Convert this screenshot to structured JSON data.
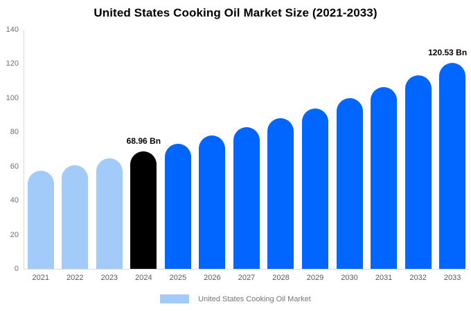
{
  "header": {
    "title": "United States Cooking Oil Market Size (2021-2033)"
  },
  "legend": {
    "label": "United States Cooking Oil Market",
    "swatch_color": "#A2CBFA"
  },
  "chart_data": {
    "type": "bar",
    "title": "United States Cooking Oil Market Size (2021-2033)",
    "unit": "Bn",
    "categories": [
      "2021",
      "2022",
      "2023",
      "2024",
      "2025",
      "2026",
      "2027",
      "2028",
      "2029",
      "2030",
      "2031",
      "2032",
      "2033"
    ],
    "values": [
      57.3,
      60.9,
      64.8,
      68.96,
      73.4,
      78.1,
      83.1,
      88.4,
      94.0,
      100.1,
      106.5,
      113.3,
      120.53
    ],
    "bar_colors": [
      "#A2CBFA",
      "#A2CBFA",
      "#A2CBFA",
      "#000000",
      "#0066FF",
      "#0066FF",
      "#0066FF",
      "#0066FF",
      "#0066FF",
      "#0066FF",
      "#0066FF",
      "#0066FF",
      "#0066FF"
    ],
    "data_labels": [
      {
        "category": "2024",
        "text": "68.96 Bn"
      },
      {
        "category": "2033",
        "text": "120.53 Bn"
      }
    ],
    "ylim": [
      0,
      140
    ],
    "yticks": [
      0,
      20,
      40,
      60,
      80,
      100,
      120,
      140
    ],
    "grid": false,
    "legend_position": "bottom",
    "legend_entries": [
      "United States Cooking Oil Market"
    ]
  }
}
